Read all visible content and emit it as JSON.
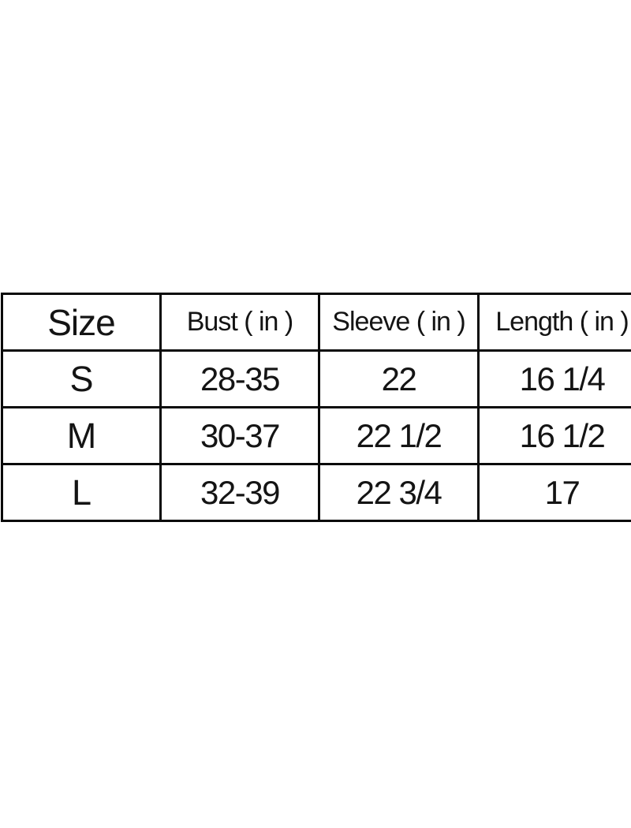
{
  "colors": {
    "background": "#ffffff",
    "border": "#0a0a0a",
    "text": "#141414"
  },
  "chart_data": {
    "type": "table",
    "title": "",
    "columns": [
      "Size",
      "Bust ( in )",
      "Sleeve ( in )",
      "Length ( in )"
    ],
    "rows": [
      [
        "S",
        "28-35",
        "22",
        "16 1/4"
      ],
      [
        "M",
        "30-37",
        "22 1/2",
        "16 1/2"
      ],
      [
        "L",
        "32-39",
        "22 3/4",
        "17"
      ]
    ],
    "layout_hints": {
      "grid": "full black borders",
      "right_edge": "table cropped at right side of image",
      "value_alignment": {
        "Size": "center",
        "Bust ( in )": "center",
        "Sleeve ( in )": "left",
        "Length ( in )": "left"
      }
    }
  }
}
